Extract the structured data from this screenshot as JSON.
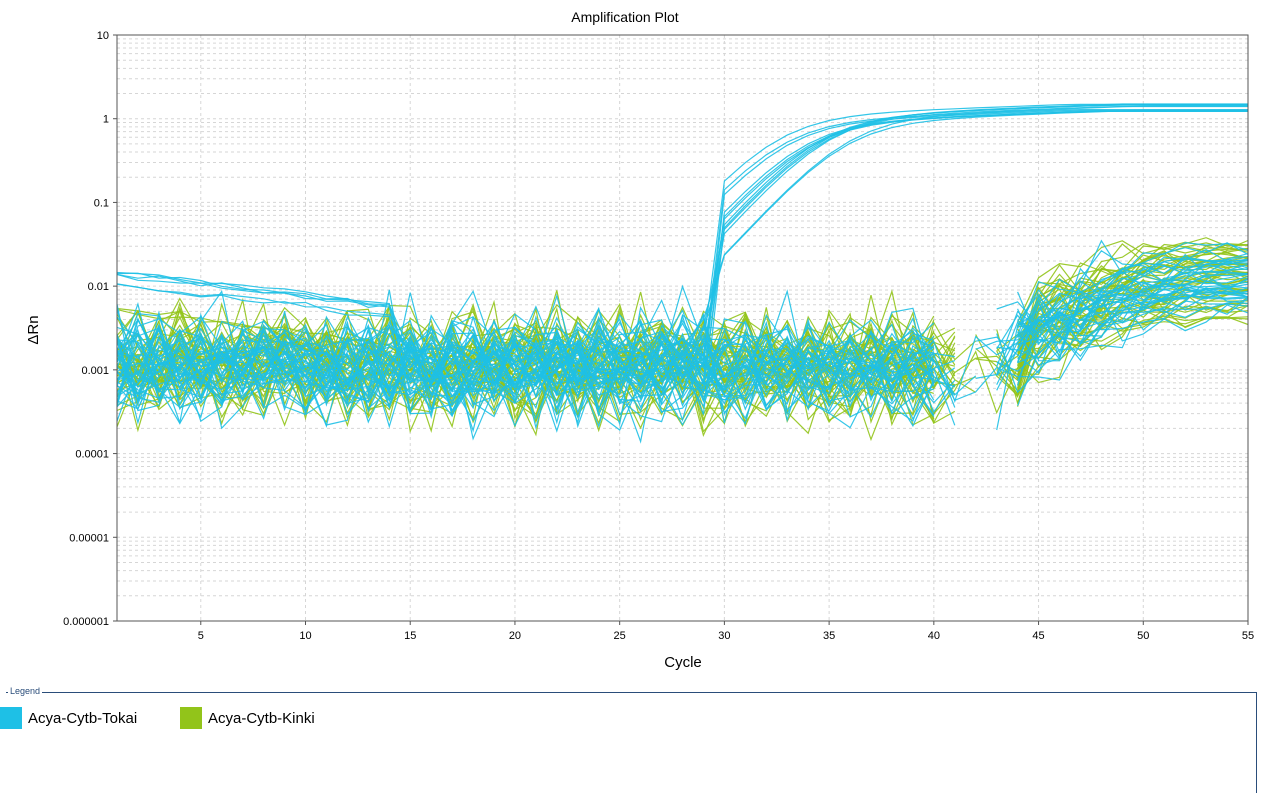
{
  "chart_data": {
    "type": "line",
    "title": "Amplification Plot",
    "xlabel": "Cycle",
    "ylabel": "ΔRn",
    "xlim": [
      1,
      55
    ],
    "ylim": [
      1e-06,
      10
    ],
    "yscale": "log",
    "grid": true,
    "x_ticks": [
      5,
      10,
      15,
      20,
      25,
      30,
      35,
      40,
      45,
      50,
      55
    ],
    "y_ticks": [
      {
        "value": 10,
        "label": "10"
      },
      {
        "value": 1,
        "label": "1"
      },
      {
        "value": 0.1,
        "label": "0.1"
      },
      {
        "value": 0.01,
        "label": "0.01"
      },
      {
        "value": 0.001,
        "label": "0.001"
      },
      {
        "value": 0.0001,
        "label": "0.0001"
      },
      {
        "value": 1e-05,
        "label": "0.00001"
      },
      {
        "value": 1e-06,
        "label": "0.000001"
      }
    ],
    "legend_position": "bottom",
    "series": [
      {
        "name": "Acya-Cytb-Tokai",
        "color": "#1ec0e6",
        "count": 48,
        "ct_range": [
          31,
          36
        ],
        "plateau_range": [
          1.2,
          1.5
        ]
      },
      {
        "name": "Acya-Cytb-Kinki",
        "color": "#92c41a",
        "count": 48,
        "late_plateau_range": [
          0.004,
          0.038
        ]
      }
    ]
  },
  "legend": {
    "title": "Legend",
    "items": [
      {
        "label": "Acya-Cytb-Tokai",
        "color": "#1ec0e6"
      },
      {
        "label": "Acya-Cytb-Kinki",
        "color": "#92c41a"
      }
    ]
  }
}
